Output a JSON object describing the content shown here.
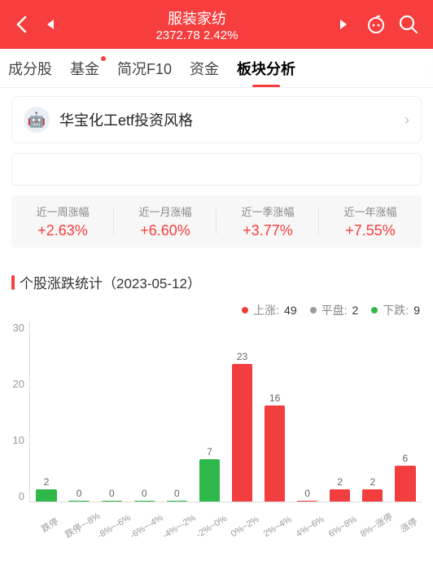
{
  "header": {
    "title": "服装家纺",
    "index_value": "2372.78",
    "change_pct": "2.42%"
  },
  "tabs": [
    {
      "label": "成分股",
      "has_dot": false,
      "active": false
    },
    {
      "label": "基金",
      "has_dot": true,
      "active": false
    },
    {
      "label": "简况F10",
      "has_dot": false,
      "active": false
    },
    {
      "label": "资金",
      "has_dot": false,
      "active": false
    },
    {
      "label": "板块分析",
      "has_dot": false,
      "active": true
    }
  ],
  "banner": {
    "text": "华宝化工etf投资风格",
    "icon": "🤖"
  },
  "period_stats": [
    {
      "label": "近一周涨幅",
      "value": "+2.63%"
    },
    {
      "label": "近一月涨幅",
      "value": "+6.60%"
    },
    {
      "label": "近一季涨幅",
      "value": "+3.77%"
    },
    {
      "label": "近一年涨幅",
      "value": "+7.55%"
    }
  ],
  "section_title": "个股涨跌统计（2023-05-12）",
  "legend": {
    "up": {
      "label": "上涨",
      "count": 49,
      "color": "#f23e3e"
    },
    "flat": {
      "label": "平盘",
      "count": 2,
      "color": "#999999"
    },
    "down": {
      "label": "下跌",
      "count": 9,
      "color": "#2fb84a"
    }
  },
  "chart": {
    "type": "bar",
    "y_max": 30,
    "y_ticks": [
      30,
      20,
      10,
      0
    ],
    "bar_width_pct": 70,
    "colors": {
      "down": "#2fb84a",
      "up": "#f23e3e",
      "flat": "#999999",
      "axis": "#dddddd",
      "value_text": "#666666",
      "label_text": "#999999"
    },
    "fontsize": {
      "value": 12,
      "label": 11,
      "ytick": 13
    },
    "bars": [
      {
        "label": "跌停",
        "value": 2,
        "kind": "down"
      },
      {
        "label": "跌停~-8%",
        "value": 0,
        "kind": "down"
      },
      {
        "label": "-8%~-6%",
        "value": 0,
        "kind": "down"
      },
      {
        "label": "-6%~-4%",
        "value": 0,
        "kind": "down"
      },
      {
        "label": "-4%~-2%",
        "value": 0,
        "kind": "down"
      },
      {
        "label": "-2%~0%",
        "value": 7,
        "kind": "down"
      },
      {
        "label": "0%~2%",
        "value": 23,
        "kind": "up"
      },
      {
        "label": "2%~4%",
        "value": 16,
        "kind": "up"
      },
      {
        "label": "4%~6%",
        "value": 0,
        "kind": "up"
      },
      {
        "label": "6%~8%",
        "value": 2,
        "kind": "up"
      },
      {
        "label": "8%~涨停",
        "value": 2,
        "kind": "up"
      },
      {
        "label": "涨停",
        "value": 6,
        "kind": "up"
      }
    ]
  }
}
